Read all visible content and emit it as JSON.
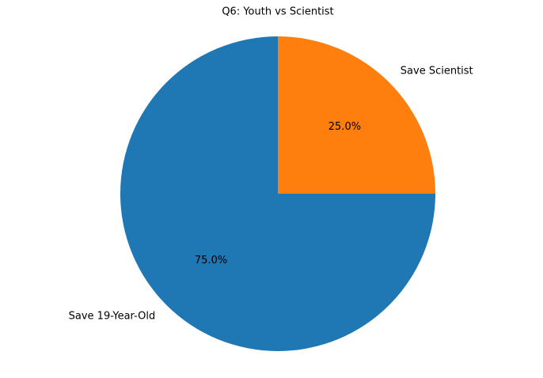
{
  "chart_data": {
    "type": "pie",
    "title": "Q6: Youth vs Scientist",
    "categories": [
      "Save 19-Year-Old",
      "Save Scientist"
    ],
    "values": [
      75,
      25
    ],
    "value_labels": [
      "75.0%",
      "25.0%"
    ],
    "colors": [
      "#1f77b4",
      "#ff7f0e"
    ]
  }
}
